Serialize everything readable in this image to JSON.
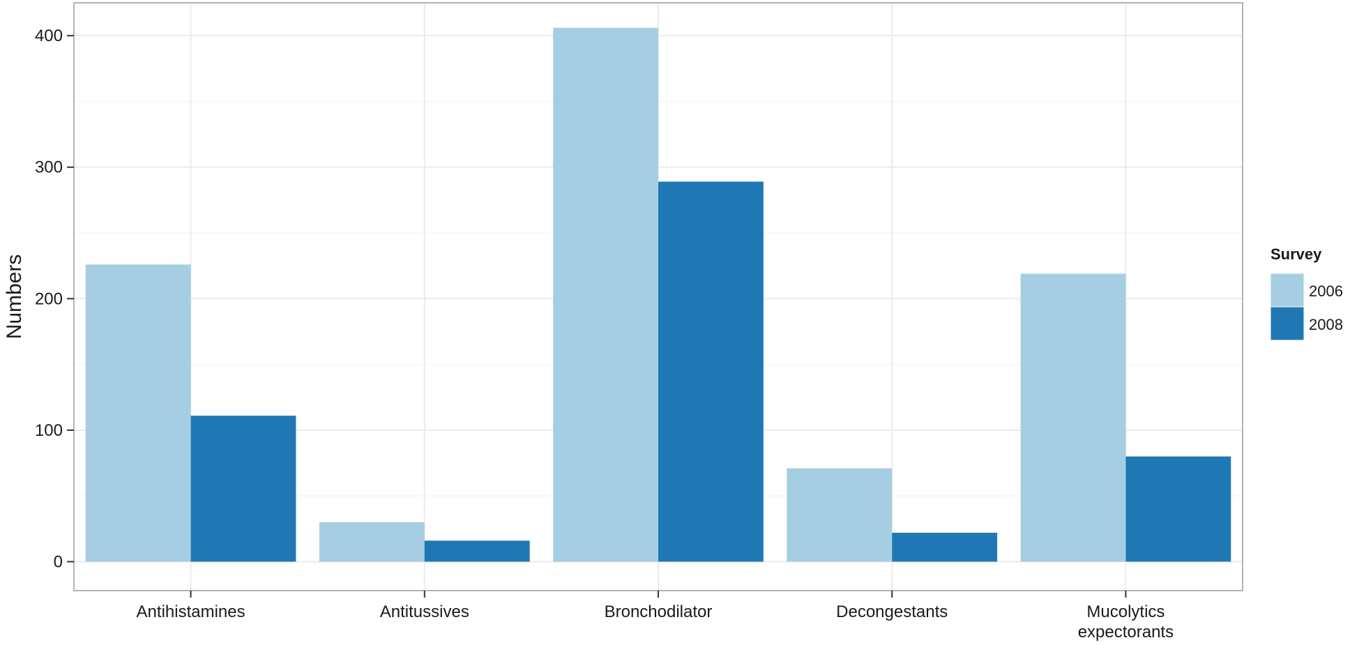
{
  "chart_data": {
    "type": "bar",
    "categories": [
      [
        "Antihistamines"
      ],
      [
        "Antitussives"
      ],
      [
        "Bronchodilator"
      ],
      [
        "Decongestants"
      ],
      [
        "Mucolytics",
        "expectorants"
      ]
    ],
    "series": [
      {
        "name": "2006",
        "color": "#a6cee3",
        "values": [
          226,
          30,
          406,
          71,
          219
        ]
      },
      {
        "name": "2008",
        "color": "#1f78b4",
        "values": [
          111,
          16,
          289,
          22,
          80
        ]
      }
    ],
    "title": "",
    "xlabel": "",
    "ylabel": "Numbers",
    "ylim": [
      -22,
      425
    ],
    "yticks": [
      0,
      100,
      200,
      300,
      400
    ],
    "grid": true,
    "legend": {
      "title": "Survey",
      "position": "right"
    }
  }
}
